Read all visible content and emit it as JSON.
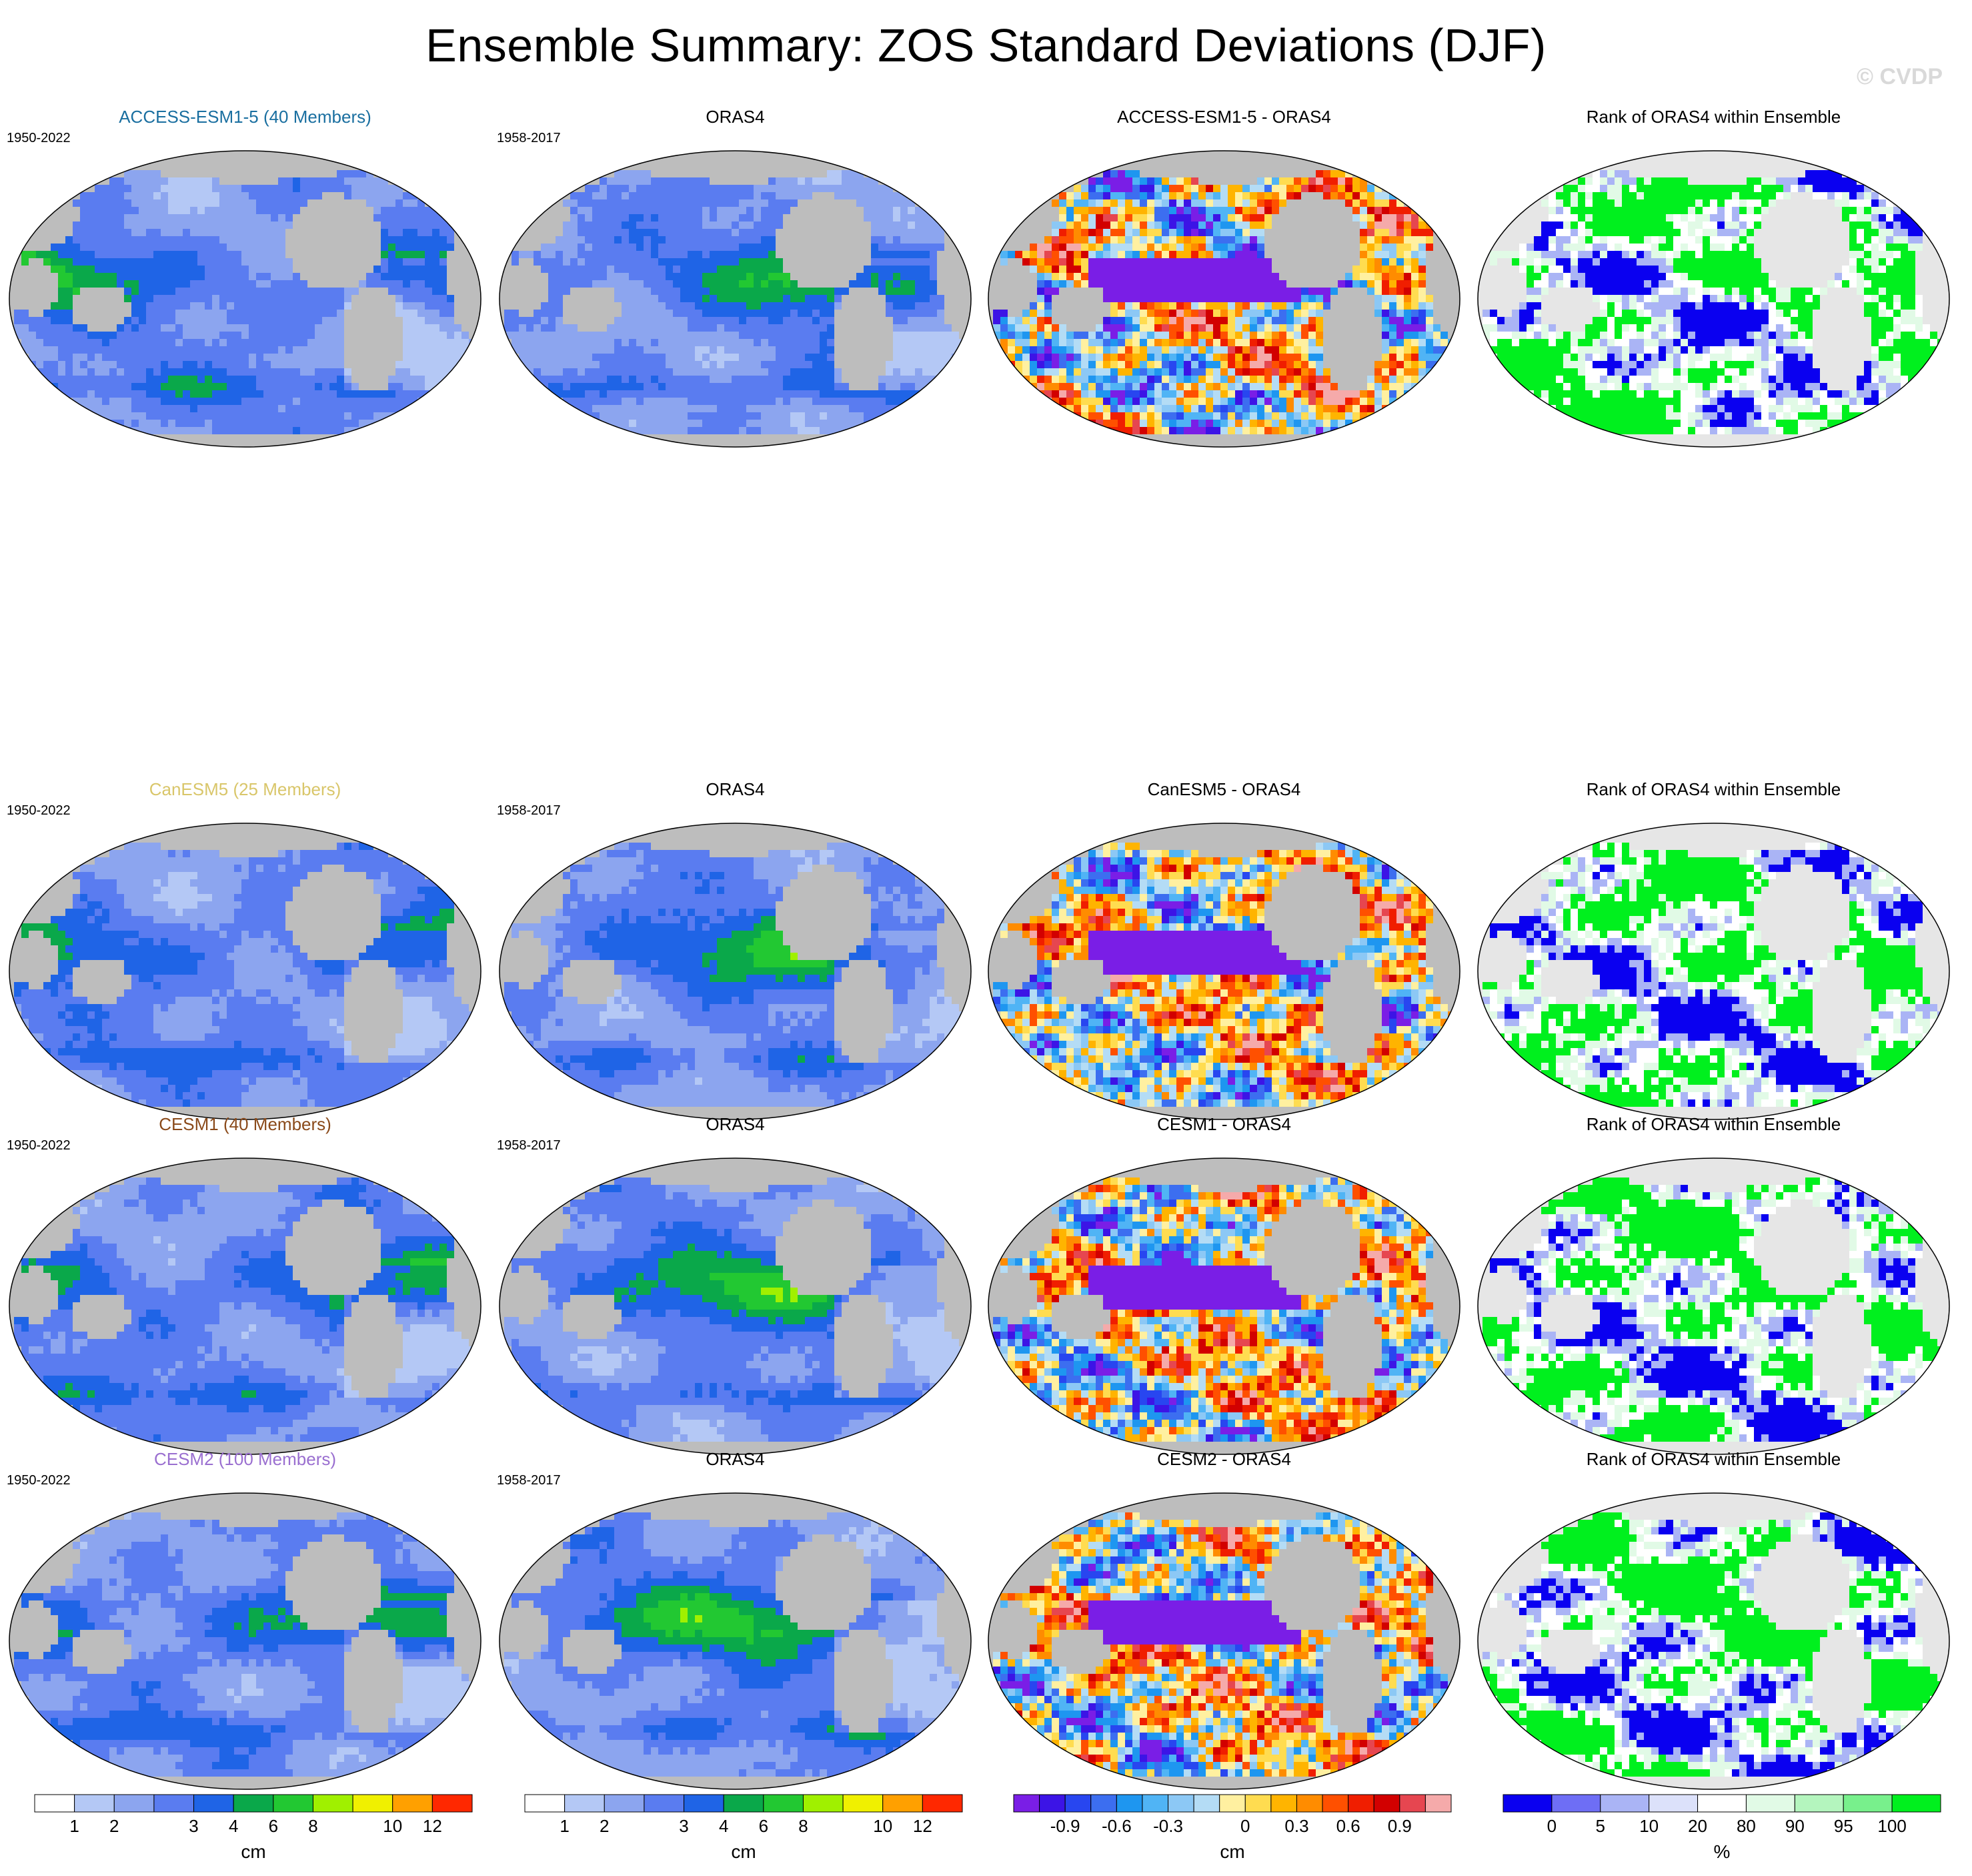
{
  "title": "Ensemble Summary: ZOS Standard Deviations (DJF)",
  "watermark": "© CVDP",
  "rows": [
    {
      "model": "ACCESS-ESM1-5 (40 Members)",
      "model_color": "#1a6fa0",
      "model_years": "1950-2022",
      "obs": "ORAS4",
      "obs_years": "1958-2017",
      "diff": "ACCESS-ESM1-5 - ORAS4",
      "rank": "Rank of ORAS4 within Ensemble"
    },
    {
      "model": "CanESM5 (25 Members)",
      "model_color": "#d9c66a",
      "model_years": "1950-2022",
      "obs": "ORAS4",
      "obs_years": "1958-2017",
      "diff": "CanESM5 - ORAS4",
      "rank": "Rank of ORAS4 within Ensemble"
    },
    {
      "model": "CESM1 (40 Members)",
      "model_color": "#8a4a1a",
      "model_years": "1950-2022",
      "obs": "ORAS4",
      "obs_years": "1958-2017",
      "diff": "CESM1 - ORAS4",
      "rank": "Rank of ORAS4 within Ensemble"
    },
    {
      "model": "CESM2 (100 Members)",
      "model_color": "#9a6fd0",
      "model_years": "1950-2022",
      "obs": "ORAS4",
      "obs_years": "1958-2017",
      "diff": "CESM2 - ORAS4",
      "rank": "Rank of ORAS4 within Ensemble"
    }
  ],
  "colorbars": {
    "std": {
      "unit": "cm",
      "labels": [
        "1",
        "2",
        "3",
        "4",
        "6",
        "8",
        "10",
        "12"
      ],
      "colors": [
        "#ffffff",
        "#b4c8f5",
        "#8ca5ef",
        "#5a7cf0",
        "#1f64e6",
        "#0aa84a",
        "#22c832",
        "#a0f000",
        "#f0f000",
        "#ffa000",
        "#ff2800"
      ]
    },
    "diff": {
      "unit": "cm",
      "labels": [
        "-0.9",
        "-0.6",
        "-0.3",
        "0",
        "0.3",
        "0.6",
        "0.9"
      ],
      "colors": [
        "#7a1ee6",
        "#3c14e6",
        "#2846f0",
        "#3c6ef0",
        "#1e96f0",
        "#50b4f5",
        "#8cc8f5",
        "#b4dcf5",
        "#fff0a0",
        "#ffdc50",
        "#ffb400",
        "#ff8c00",
        "#ff5000",
        "#f01e00",
        "#d20000",
        "#e64650",
        "#f5aaaa"
      ]
    },
    "rank": {
      "unit": "%",
      "labels": [
        "0",
        "5",
        "10",
        "20",
        "80",
        "90",
        "95",
        "100"
      ],
      "colors": [
        "#0a00f0",
        "#6e6ef5",
        "#aab4f5",
        "#dce1fa",
        "#ffffff",
        "#e1fae6",
        "#b4f5be",
        "#78f08c",
        "#00f01e"
      ]
    }
  }
}
